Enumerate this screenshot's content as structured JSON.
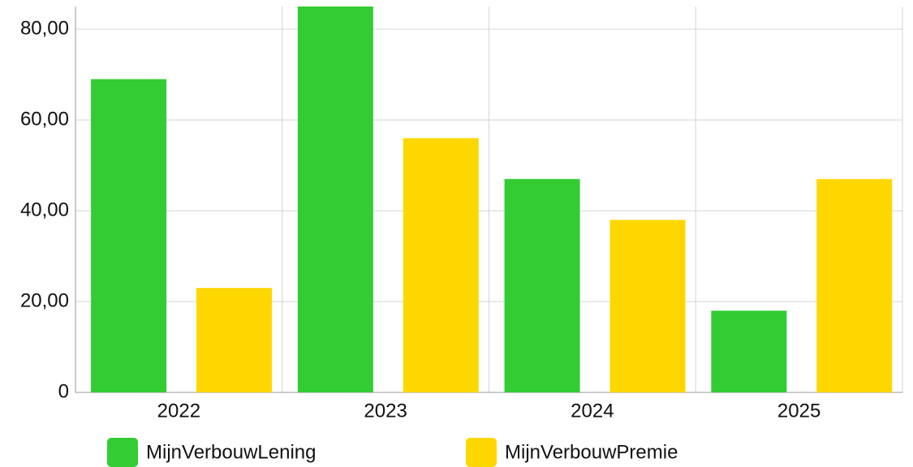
{
  "chart_data": {
    "type": "bar",
    "categories": [
      "2022",
      "2023",
      "2024",
      "2025"
    ],
    "series": [
      {
        "name": "MijnVerbouwLening",
        "color": "#33cc33",
        "values": [
          69,
          85,
          47,
          18
        ]
      },
      {
        "name": "MijnVerbouwPremie",
        "color": "#ffd700",
        "values": [
          23,
          56,
          38,
          47
        ]
      }
    ],
    "ylim": [
      0,
      85
    ],
    "yticks": [
      0,
      {
        "value": 20,
        "label": "20,00"
      },
      {
        "value": 40,
        "label": "40,00"
      },
      {
        "value": 60,
        "label": "60,00"
      },
      {
        "value": 80,
        "label": "80,00"
      }
    ],
    "grid": true,
    "legend": "bottom"
  }
}
